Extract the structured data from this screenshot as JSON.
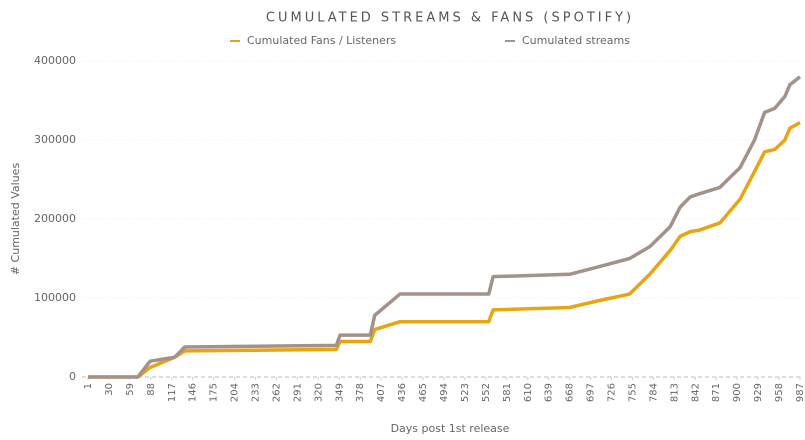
{
  "chart_data": {
    "type": "line",
    "title": "CUMULATED STREAMS & FANS (SPOTIFY)",
    "x_label": "Days post 1st release",
    "y_label": "# Cumulated Values",
    "x": [
      1,
      70,
      87,
      121,
      135,
      345,
      350,
      392,
      398,
      433,
      556,
      562,
      668,
      710,
      751,
      779,
      807,
      821,
      835,
      848,
      876,
      904,
      924,
      938,
      952,
      966,
      973,
      987
    ],
    "series": [
      {
        "name": "Cumulated Fans / Listeners",
        "color": "#e8a412",
        "values": [
          0,
          0,
          12000,
          25000,
          33000,
          35000,
          45000,
          45000,
          60000,
          70000,
          70000,
          85000,
          88000,
          97000,
          105000,
          130000,
          160000,
          178000,
          184000,
          186000,
          195000,
          225000,
          260000,
          285000,
          288000,
          300000,
          315000,
          322000
        ]
      },
      {
        "name": "Cumulated streams",
        "color": "#a3928a",
        "values": [
          0,
          0,
          20000,
          25000,
          38000,
          40000,
          53000,
          53000,
          78000,
          105000,
          105000,
          127000,
          130000,
          140000,
          150000,
          165000,
          190000,
          215000,
          228000,
          232000,
          240000,
          265000,
          300000,
          335000,
          340000,
          355000,
          370000,
          380000
        ]
      }
    ],
    "xlim": [
      1,
      987
    ],
    "xticks": [
      1,
      30,
      59,
      88,
      117,
      146,
      175,
      204,
      233,
      262,
      291,
      320,
      349,
      378,
      407,
      436,
      465,
      494,
      523,
      552,
      581,
      610,
      639,
      668,
      697,
      726,
      755,
      784,
      813,
      842,
      871,
      900,
      929,
      958,
      987
    ],
    "ylim": [
      0,
      400000
    ],
    "yticks": [
      0,
      100000,
      200000,
      300000,
      400000
    ],
    "grid": true
  }
}
